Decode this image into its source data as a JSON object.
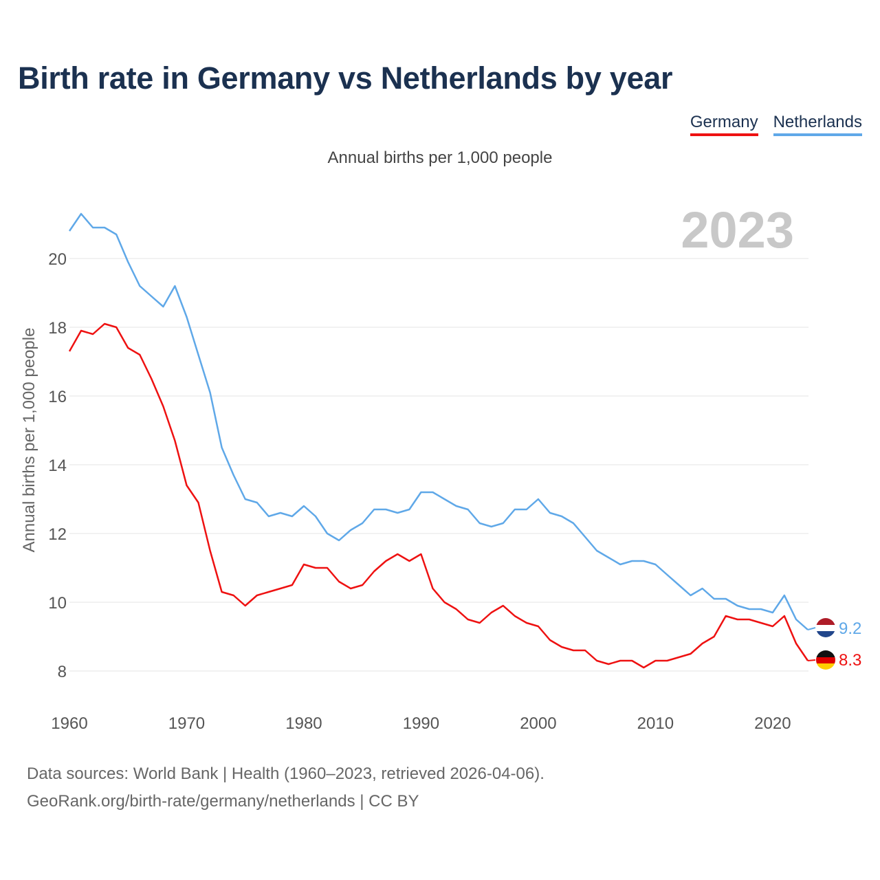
{
  "title": "Birth rate in Germany vs Netherlands by year",
  "subtitle": "Annual births per 1,000 people",
  "legend": [
    {
      "label": "Germany",
      "color": "#ee1111"
    },
    {
      "label": "Netherlands",
      "color": "#5fa8e8"
    }
  ],
  "year_overlay": "2023",
  "end_labels": {
    "germany": "8.3",
    "netherlands": "9.2"
  },
  "footer": {
    "line1": "Data sources: World Bank | Health (1960–2023, retrieved 2026-04-06).",
    "line2": "GeoRank.org/birth-rate/germany/netherlands | CC BY"
  },
  "chart_data": {
    "type": "line",
    "title": "Birth rate in Germany vs Netherlands by year",
    "ylabel": "Annual births per 1,000 people",
    "xlabel": "",
    "xlim": [
      1960,
      2023
    ],
    "ylim": [
      7,
      22
    ],
    "yticks": [
      8,
      10,
      12,
      14,
      16,
      18,
      20
    ],
    "xticks": [
      1960,
      1970,
      1980,
      1990,
      2000,
      2010,
      2020
    ],
    "grid": true,
    "x": [
      1960,
      1961,
      1962,
      1963,
      1964,
      1965,
      1966,
      1967,
      1968,
      1969,
      1970,
      1971,
      1972,
      1973,
      1974,
      1975,
      1976,
      1977,
      1978,
      1979,
      1980,
      1981,
      1982,
      1983,
      1984,
      1985,
      1986,
      1987,
      1988,
      1989,
      1990,
      1991,
      1992,
      1993,
      1994,
      1995,
      1996,
      1997,
      1998,
      1999,
      2000,
      2001,
      2002,
      2003,
      2004,
      2005,
      2006,
      2007,
      2008,
      2009,
      2010,
      2011,
      2012,
      2013,
      2014,
      2015,
      2016,
      2017,
      2018,
      2019,
      2020,
      2021,
      2022,
      2023
    ],
    "series": [
      {
        "name": "Germany",
        "color": "#ee1111",
        "values": [
          17.3,
          17.9,
          17.8,
          18.1,
          18.0,
          17.4,
          17.2,
          16.5,
          15.7,
          14.7,
          13.4,
          12.9,
          11.5,
          10.3,
          10.2,
          9.9,
          10.2,
          10.3,
          10.4,
          10.5,
          11.1,
          11.0,
          11.0,
          10.6,
          10.4,
          10.5,
          10.9,
          11.2,
          11.4,
          11.2,
          11.4,
          10.4,
          10.0,
          9.8,
          9.5,
          9.4,
          9.7,
          9.9,
          9.6,
          9.4,
          9.3,
          8.9,
          8.7,
          8.6,
          8.6,
          8.3,
          8.2,
          8.3,
          8.3,
          8.1,
          8.3,
          8.3,
          8.4,
          8.5,
          8.8,
          9.0,
          9.6,
          9.5,
          9.5,
          9.4,
          9.3,
          9.6,
          8.8,
          8.3
        ]
      },
      {
        "name": "Netherlands",
        "color": "#5fa8e8",
        "values": [
          20.8,
          21.3,
          20.9,
          20.9,
          20.7,
          19.9,
          19.2,
          18.9,
          18.6,
          19.2,
          18.3,
          17.2,
          16.1,
          14.5,
          13.7,
          13.0,
          12.9,
          12.5,
          12.6,
          12.5,
          12.8,
          12.5,
          12.0,
          11.8,
          12.1,
          12.3,
          12.7,
          12.7,
          12.6,
          12.7,
          13.2,
          13.2,
          13.0,
          12.8,
          12.7,
          12.3,
          12.2,
          12.3,
          12.7,
          12.7,
          13.0,
          12.6,
          12.5,
          12.3,
          11.9,
          11.5,
          11.3,
          11.1,
          11.2,
          11.2,
          11.1,
          10.8,
          10.5,
          10.2,
          10.4,
          10.1,
          10.1,
          9.9,
          9.8,
          9.8,
          9.7,
          10.2,
          9.5,
          9.2
        ]
      }
    ]
  }
}
